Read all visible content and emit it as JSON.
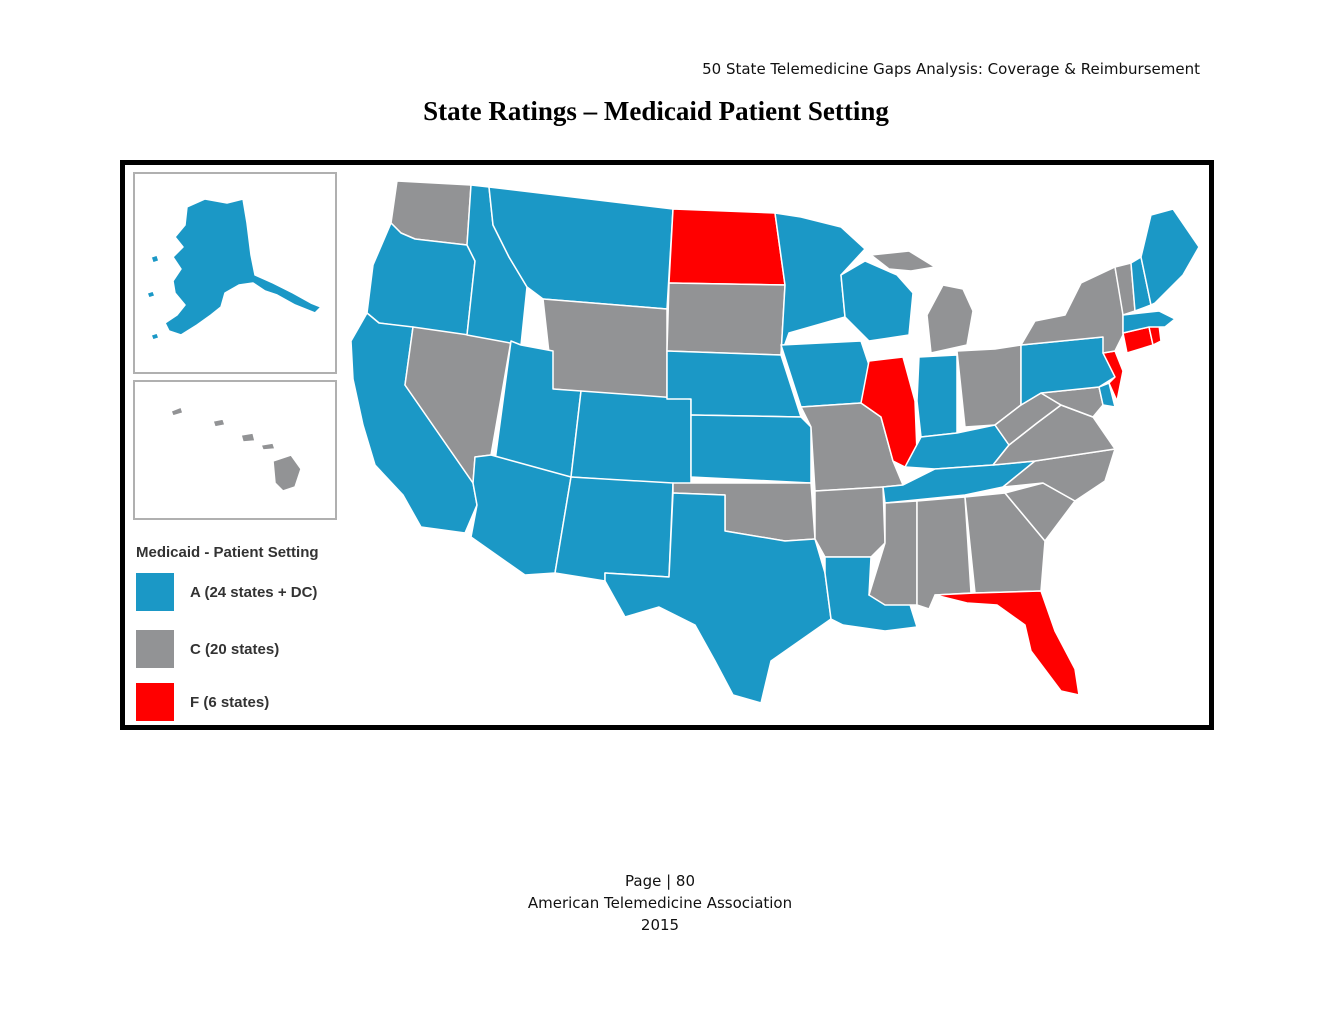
{
  "document": {
    "running_header": "50 State Telemedicine Gaps Analysis:  Coverage & Reimbursement",
    "title": "State Ratings – Medicaid Patient Setting"
  },
  "legend": {
    "title": "Medicaid - Patient Setting",
    "items": [
      {
        "grade": "A",
        "label": "A (24 states + DC)",
        "color": "#1b98c6"
      },
      {
        "grade": "C",
        "label": "C (20 states)",
        "color": "#929395"
      },
      {
        "grade": "F",
        "label": "F (6 states)",
        "color": "#ff0000"
      }
    ]
  },
  "map": {
    "colors": {
      "A": "#1b98c6",
      "C": "#929395",
      "F": "#ff0000",
      "border": "#ffffff"
    },
    "ratings": {
      "WA": "C",
      "OR": "A",
      "CA": "A",
      "NV": "C",
      "ID": "A",
      "MT": "A",
      "WY": "C",
      "UT": "A",
      "AZ": "A",
      "CO": "A",
      "NM": "A",
      "ND": "F",
      "SD": "C",
      "NE": "A",
      "KS": "A",
      "OK": "C",
      "TX": "A",
      "MN": "A",
      "IA": "A",
      "MO": "C",
      "AR": "C",
      "LA": "A",
      "WI": "A",
      "IL": "F",
      "MI": "C",
      "IN": "A",
      "OH": "C",
      "KY": "A",
      "TN": "A",
      "MS": "C",
      "AL": "C",
      "GA": "C",
      "FL": "F",
      "SC": "C",
      "NC": "C",
      "VA": "C",
      "WV": "C",
      "MD": "C",
      "DE": "A",
      "PA": "A",
      "NJ": "F",
      "NY": "C",
      "CT": "F",
      "RI": "F",
      "MA": "A",
      "VT": "C",
      "NH": "A",
      "ME": "A",
      "AK": "A",
      "HI": "C"
    }
  },
  "footer": {
    "page": "Page | 80",
    "org": "American Telemedicine Association",
    "year": "2015"
  }
}
